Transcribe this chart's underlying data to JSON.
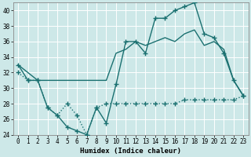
{
  "xlabel": "Humidex (Indice chaleur)",
  "background_color": "#cde8e8",
  "grid_color": "#b0d0d0",
  "line_color": "#1a7070",
  "xlim": [
    -0.5,
    23.5
  ],
  "ylim": [
    24,
    41
  ],
  "yticks": [
    24,
    26,
    28,
    30,
    32,
    34,
    36,
    38,
    40
  ],
  "xticks": [
    0,
    1,
    2,
    3,
    4,
    5,
    6,
    7,
    8,
    9,
    10,
    11,
    12,
    13,
    14,
    15,
    16,
    17,
    18,
    19,
    20,
    21,
    22,
    23
  ],
  "series1_x": [
    0,
    1,
    2,
    3,
    4,
    5,
    6,
    7,
    8,
    9,
    10,
    11,
    12,
    13,
    14,
    15,
    16,
    17,
    18,
    19,
    20,
    21,
    22,
    23
  ],
  "series1_y": [
    33,
    31,
    31,
    27.5,
    26.5,
    25,
    24.5,
    24,
    27.5,
    25.5,
    30.5,
    36,
    36,
    34.5,
    39,
    39,
    40,
    40.5,
    41,
    37,
    36.5,
    34.5,
    31,
    29
  ],
  "series2_x": [
    0,
    2,
    9,
    10,
    11,
    12,
    13,
    14,
    15,
    16,
    17,
    18,
    19,
    20,
    21,
    22,
    23
  ],
  "series2_y": [
    33,
    31,
    31,
    34.5,
    35,
    36,
    35.5,
    36,
    36.5,
    36,
    37,
    37.5,
    35.5,
    36,
    35,
    31,
    29
  ],
  "series3_x": [
    0,
    1,
    2,
    3,
    4,
    5,
    6,
    7,
    8,
    9,
    10,
    11,
    12,
    13,
    14,
    15,
    16,
    17,
    18,
    19,
    20,
    21,
    22,
    23
  ],
  "series3_y": [
    32,
    31,
    31,
    27.5,
    26.5,
    28,
    26.5,
    24,
    27.5,
    28,
    28,
    28,
    28,
    28,
    28,
    28,
    28,
    28.5,
    28.5,
    28.5,
    28.5,
    28.5,
    28.5,
    29
  ],
  "linewidth": 1.0
}
